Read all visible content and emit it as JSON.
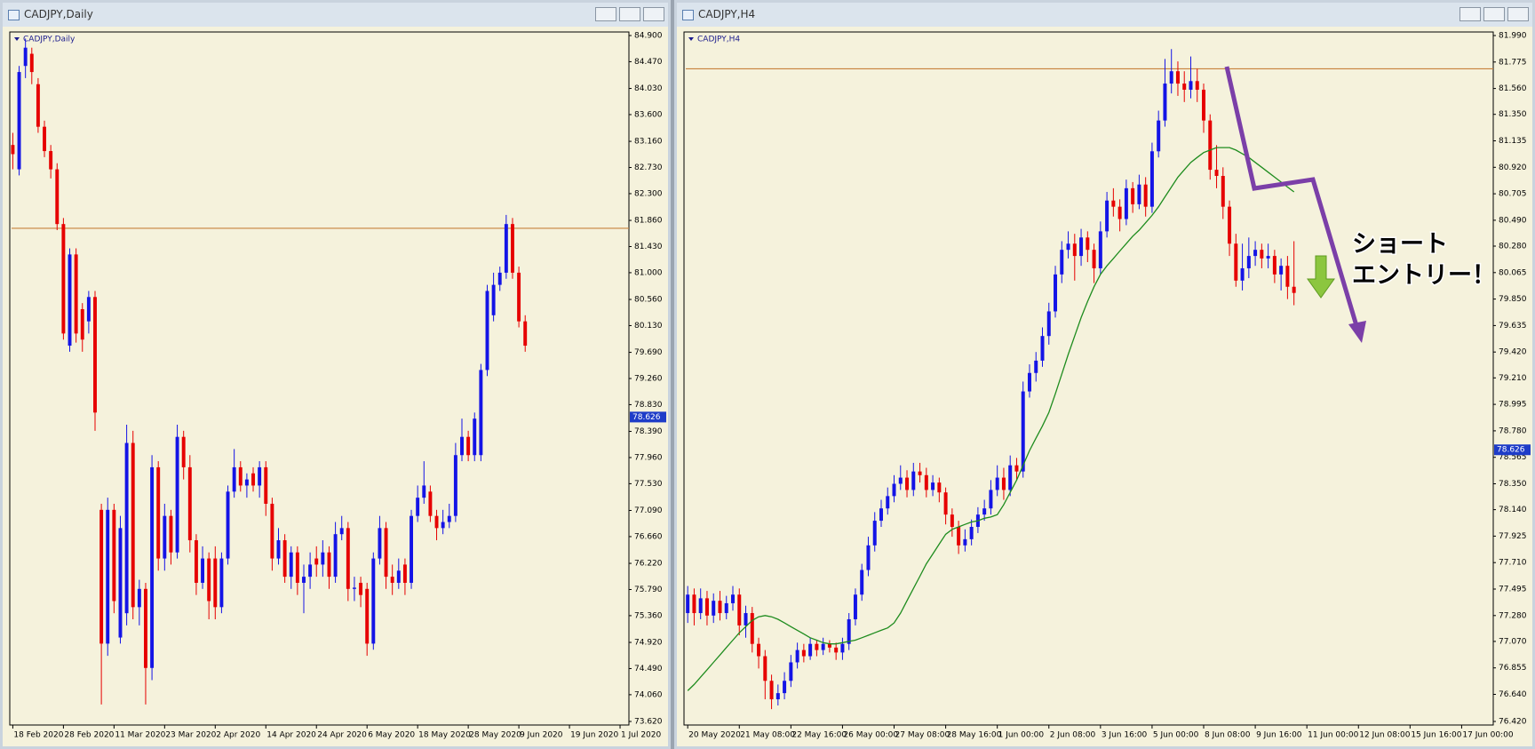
{
  "chart_data": [
    {
      "type": "candlestick",
      "window_title": "CADJPY,Daily",
      "title": "CADJPY,Daily",
      "background": "#f5f2dc",
      "bull_color": "#1414e6",
      "bear_color": "#e60000",
      "hline": 81.73,
      "hline_color": "#c8823c",
      "price_marker": 78.626,
      "marker_color": "#1e3cc8",
      "xlim": [
        -0.2,
        97.4
      ],
      "ylim": [
        73.62,
        84.9
      ],
      "xticks": [
        {
          "value": 0,
          "label": "18 Feb 2020"
        },
        {
          "value": 8,
          "label": "28 Feb 2020"
        },
        {
          "value": 16,
          "label": "11 Mar 2020"
        },
        {
          "value": 24,
          "label": "23 Mar 2020"
        },
        {
          "value": 32,
          "label": "2 Apr 2020"
        },
        {
          "value": 40,
          "label": "14 Apr 2020"
        },
        {
          "value": 48,
          "label": "24 Apr 2020"
        },
        {
          "value": 56,
          "label": "6 May 2020"
        },
        {
          "value": 64,
          "label": "18 May 2020"
        },
        {
          "value": 72,
          "label": "28 May 2020"
        },
        {
          "value": 80,
          "label": "9 Jun 2020"
        },
        {
          "value": 88,
          "label": "19 Jun 2020"
        },
        {
          "value": 96,
          "label": "1 Jul 2020"
        }
      ],
      "yticks": [
        {
          "value": 84.9,
          "label": "84.900"
        },
        {
          "value": 84.47,
          "label": "84.470"
        },
        {
          "value": 84.03,
          "label": "84.030"
        },
        {
          "value": 83.6,
          "label": "83.600"
        },
        {
          "value": 83.16,
          "label": "83.160"
        },
        {
          "value": 82.73,
          "label": "82.730"
        },
        {
          "value": 82.3,
          "label": "82.300"
        },
        {
          "value": 81.86,
          "label": "81.860"
        },
        {
          "value": 81.43,
          "label": "81.430"
        },
        {
          "value": 81.0,
          "label": "81.000"
        },
        {
          "value": 80.56,
          "label": "80.560"
        },
        {
          "value": 80.13,
          "label": "80.130"
        },
        {
          "value": 79.69,
          "label": "79.690"
        },
        {
          "value": 79.26,
          "label": "79.260"
        },
        {
          "value": 78.83,
          "label": "78.830"
        },
        {
          "value": 78.39,
          "label": "78.390"
        },
        {
          "value": 77.96,
          "label": "77.960"
        },
        {
          "value": 77.53,
          "label": "77.530"
        },
        {
          "value": 77.09,
          "label": "77.090"
        },
        {
          "value": 76.66,
          "label": "76.660"
        },
        {
          "value": 76.22,
          "label": "76.220"
        },
        {
          "value": 75.79,
          "label": "75.790"
        },
        {
          "value": 75.36,
          "label": "75.360"
        },
        {
          "value": 74.92,
          "label": "74.920"
        },
        {
          "value": 74.49,
          "label": "74.490"
        },
        {
          "value": 74.06,
          "label": "74.060"
        },
        {
          "value": 73.62,
          "label": "73.620"
        }
      ],
      "open": [
        83.1,
        82.7,
        84.4,
        84.6,
        84.1,
        83.4,
        83.0,
        82.7,
        81.8,
        79.8,
        81.3,
        80.4,
        80.2,
        80.6,
        77.1,
        74.9,
        77.1,
        75.0,
        75.4,
        78.2,
        75.5,
        75.8,
        74.5,
        77.8,
        76.3,
        77.0,
        76.4,
        78.3,
        77.8,
        76.6,
        75.9,
        76.3,
        76.3,
        75.5,
        76.3,
        77.4,
        77.8,
        77.5,
        77.7,
        77.5,
        77.8,
        77.2,
        76.3,
        76.6,
        76.0,
        76.4,
        75.9,
        76.0,
        76.3,
        76.2,
        76.4,
        76.0,
        76.7,
        76.8,
        75.8,
        75.9,
        75.8,
        74.9,
        76.3,
        76.8,
        76.0,
        75.9,
        76.2,
        75.9,
        77.0,
        77.3,
        77.4,
        77.0,
        76.8,
        76.9,
        77.0,
        78.0,
        78.3,
        78.0,
        78.0,
        79.4,
        80.3,
        80.8,
        81.0,
        81.8,
        81.0,
        80.2
      ],
      "high": [
        83.3,
        84.4,
        84.85,
        84.7,
        84.2,
        83.5,
        83.1,
        82.8,
        81.9,
        81.4,
        81.4,
        80.5,
        80.7,
        80.7,
        77.2,
        77.3,
        77.2,
        77.0,
        78.5,
        78.4,
        75.95,
        75.9,
        78.0,
        77.9,
        77.2,
        77.1,
        78.5,
        78.4,
        78.0,
        76.7,
        76.5,
        76.4,
        76.5,
        76.4,
        77.5,
        78.1,
        77.9,
        77.7,
        77.8,
        77.9,
        77.9,
        77.3,
        76.8,
        76.7,
        76.5,
        76.5,
        76.2,
        76.4,
        76.5,
        76.6,
        76.5,
        76.9,
        77.0,
        76.9,
        76.0,
        76.0,
        75.9,
        76.4,
        77.0,
        76.9,
        76.2,
        76.3,
        76.3,
        77.1,
        77.5,
        77.9,
        77.5,
        77.1,
        77.1,
        77.2,
        78.2,
        78.6,
        78.4,
        78.7,
        79.5,
        80.8,
        81.0,
        81.1,
        81.95,
        81.9,
        81.1,
        80.3
      ],
      "low": [
        82.7,
        82.6,
        84.2,
        84.1,
        83.3,
        82.9,
        82.55,
        81.7,
        79.9,
        79.7,
        79.85,
        79.7,
        80.0,
        78.4,
        73.9,
        74.7,
        75.4,
        74.9,
        75.2,
        75.3,
        75.2,
        73.9,
        74.3,
        76.1,
        76.1,
        76.2,
        76.3,
        77.6,
        76.4,
        75.7,
        75.8,
        75.3,
        75.3,
        75.4,
        76.2,
        77.3,
        77.4,
        77.3,
        77.4,
        77.3,
        77.0,
        76.1,
        76.2,
        75.9,
        75.8,
        75.7,
        75.4,
        75.8,
        76.0,
        76.0,
        75.8,
        75.9,
        76.6,
        75.6,
        75.6,
        75.5,
        74.7,
        74.8,
        76.2,
        75.8,
        75.7,
        75.8,
        75.7,
        75.8,
        76.9,
        77.2,
        76.9,
        76.6,
        76.7,
        76.8,
        76.9,
        77.9,
        77.9,
        77.9,
        77.9,
        79.3,
        80.2,
        80.7,
        80.9,
        80.9,
        80.1,
        79.7
      ],
      "close": [
        82.95,
        84.3,
        84.7,
        84.3,
        83.4,
        83.0,
        82.7,
        81.8,
        80.0,
        81.3,
        80.0,
        79.9,
        80.6,
        78.7,
        74.9,
        77.1,
        75.6,
        76.8,
        78.2,
        75.5,
        75.8,
        74.5,
        77.8,
        76.3,
        77.0,
        76.4,
        78.3,
        77.8,
        76.6,
        75.9,
        76.3,
        75.6,
        75.5,
        76.3,
        77.4,
        77.8,
        77.5,
        77.6,
        77.5,
        77.8,
        77.2,
        76.3,
        76.6,
        76.0,
        76.4,
        75.9,
        76.0,
        76.2,
        76.2,
        76.4,
        76.0,
        76.7,
        76.8,
        75.8,
        75.82,
        75.7,
        74.9,
        76.3,
        76.8,
        76.0,
        75.9,
        76.1,
        75.9,
        77.0,
        77.3,
        77.5,
        77.0,
        76.8,
        76.9,
        77.0,
        78.0,
        78.3,
        78.0,
        78.6,
        79.4,
        80.7,
        80.8,
        81.0,
        81.8,
        81.0,
        80.2,
        79.8
      ]
    },
    {
      "type": "candlestick",
      "window_title": "CADJPY,H4",
      "title": "CADJPY,H4",
      "background": "#f5f2dc",
      "bull_color": "#1414e6",
      "bear_color": "#e60000",
      "hline": 81.72,
      "hline_color": "#c8823c",
      "price_marker": 78.626,
      "marker_color": "#1e3cc8",
      "line_color": "#1e8c1e",
      "annotations": [
        "ショート",
        "エントリー！"
      ],
      "annotation_color": "#ea2f6e",
      "xlim": [
        -0.3,
        124.9
      ],
      "ylim": [
        76.42,
        81.99
      ],
      "xticks": [
        {
          "value": 0,
          "label": "20 May 2020"
        },
        {
          "value": 8,
          "label": "21 May 08:00"
        },
        {
          "value": 16,
          "label": "22 May 16:00"
        },
        {
          "value": 24,
          "label": "26 May 00:00"
        },
        {
          "value": 32,
          "label": "27 May 08:00"
        },
        {
          "value": 40,
          "label": "28 May 16:00"
        },
        {
          "value": 48,
          "label": "1 Jun 00:00"
        },
        {
          "value": 56,
          "label": "2 Jun 08:00"
        },
        {
          "value": 64,
          "label": "3 Jun 16:00"
        },
        {
          "value": 72,
          "label": "5 Jun 00:00"
        },
        {
          "value": 80,
          "label": "8 Jun 08:00"
        },
        {
          "value": 88,
          "label": "9 Jun 16:00"
        },
        {
          "value": 96,
          "label": "11 Jun 00:00"
        },
        {
          "value": 104,
          "label": "12 Jun 08:00"
        },
        {
          "value": 112,
          "label": "15 Jun 16:00"
        },
        {
          "value": 120,
          "label": "17 Jun 00:00"
        }
      ],
      "yticks": [
        {
          "value": 81.99,
          "label": "81.990"
        },
        {
          "value": 81.775,
          "label": "81.775"
        },
        {
          "value": 81.56,
          "label": "81.560"
        },
        {
          "value": 81.35,
          "label": "81.350"
        },
        {
          "value": 81.135,
          "label": "81.135"
        },
        {
          "value": 80.92,
          "label": "80.920"
        },
        {
          "value": 80.705,
          "label": "80.705"
        },
        {
          "value": 80.49,
          "label": "80.490"
        },
        {
          "value": 80.28,
          "label": "80.280"
        },
        {
          "value": 80.065,
          "label": "80.065"
        },
        {
          "value": 79.85,
          "label": "79.850"
        },
        {
          "value": 79.635,
          "label": "79.635"
        },
        {
          "value": 79.42,
          "label": "79.420"
        },
        {
          "value": 79.21,
          "label": "79.210"
        },
        {
          "value": 78.995,
          "label": "78.995"
        },
        {
          "value": 78.78,
          "label": "78.780"
        },
        {
          "value": 78.565,
          "label": "78.565"
        },
        {
          "value": 78.35,
          "label": "78.350"
        },
        {
          "value": 78.14,
          "label": "78.140"
        },
        {
          "value": 77.925,
          "label": "77.925"
        },
        {
          "value": 77.71,
          "label": "77.710"
        },
        {
          "value": 77.495,
          "label": "77.495"
        },
        {
          "value": 77.28,
          "label": "77.280"
        },
        {
          "value": 77.07,
          "label": "77.070"
        },
        {
          "value": 76.855,
          "label": "76.855"
        },
        {
          "value": 76.64,
          "label": "76.640"
        },
        {
          "value": 76.42,
          "label": "76.420"
        }
      ],
      "open": [
        77.3,
        77.45,
        77.3,
        77.42,
        77.28,
        77.4,
        77.3,
        77.38,
        77.45,
        77.2,
        77.3,
        77.05,
        76.95,
        76.75,
        76.6,
        76.65,
        76.75,
        76.9,
        77.0,
        76.95,
        77.05,
        77.0,
        77.05,
        77.02,
        76.98,
        77.05,
        77.25,
        77.45,
        77.65,
        77.85,
        78.05,
        78.15,
        78.25,
        78.35,
        78.4,
        78.3,
        78.45,
        78.42,
        78.3,
        78.36,
        78.28,
        78.1,
        78.0,
        77.85,
        77.9,
        78.0,
        78.1,
        78.15,
        78.3,
        78.4,
        78.3,
        78.5,
        78.45,
        79.1,
        79.25,
        79.35,
        79.55,
        79.75,
        80.05,
        80.25,
        80.3,
        80.2,
        80.35,
        80.25,
        80.1,
        80.4,
        80.65,
        80.6,
        80.5,
        80.75,
        80.62,
        80.78,
        80.6,
        81.05,
        81.3,
        81.6,
        81.7,
        81.6,
        81.55,
        81.62,
        81.55,
        81.3,
        80.9,
        80.85,
        80.6,
        80.3,
        80.0,
        80.1,
        80.2,
        80.25,
        80.18,
        80.2,
        80.05,
        80.12,
        79.95
      ],
      "high": [
        77.52,
        77.5,
        77.5,
        77.48,
        77.46,
        77.48,
        77.44,
        77.52,
        77.5,
        77.36,
        77.35,
        77.1,
        77.0,
        76.8,
        76.72,
        76.82,
        76.96,
        77.06,
        77.05,
        77.1,
        77.08,
        77.1,
        77.08,
        77.06,
        77.1,
        77.3,
        77.5,
        77.7,
        77.92,
        78.12,
        78.22,
        78.32,
        78.42,
        78.5,
        78.46,
        78.52,
        78.52,
        78.48,
        78.42,
        78.4,
        78.32,
        78.15,
        78.05,
        77.98,
        78.06,
        78.16,
        78.22,
        78.38,
        78.5,
        78.48,
        78.58,
        78.56,
        79.18,
        79.32,
        79.42,
        79.62,
        79.82,
        80.12,
        80.32,
        80.4,
        80.38,
        80.42,
        80.4,
        80.3,
        80.48,
        80.72,
        80.75,
        80.66,
        80.82,
        80.8,
        80.86,
        80.84,
        81.12,
        81.38,
        81.8,
        81.88,
        81.78,
        81.7,
        81.82,
        81.72,
        81.6,
        81.35,
        81.1,
        80.92,
        80.65,
        80.38,
        80.3,
        80.35,
        80.32,
        80.3,
        80.3,
        80.25,
        80.18,
        80.2,
        80.32
      ],
      "low": [
        77.22,
        77.2,
        77.25,
        77.2,
        77.22,
        77.24,
        77.25,
        77.32,
        77.12,
        77.1,
        76.98,
        76.85,
        76.6,
        76.52,
        76.55,
        76.6,
        76.7,
        76.85,
        76.9,
        76.92,
        76.95,
        76.96,
        76.98,
        76.92,
        76.92,
        77.0,
        77.2,
        77.4,
        77.6,
        77.8,
        78.0,
        78.1,
        78.2,
        78.3,
        78.24,
        78.25,
        78.36,
        78.24,
        78.25,
        78.2,
        78.02,
        77.92,
        77.78,
        77.8,
        77.85,
        77.95,
        78.05,
        78.1,
        78.25,
        78.22,
        78.25,
        78.38,
        78.4,
        79.05,
        79.18,
        79.3,
        79.48,
        79.7,
        79.98,
        80.18,
        80.0,
        80.12,
        80.15,
        79.98,
        80.05,
        80.35,
        80.52,
        80.4,
        80.45,
        80.55,
        80.58,
        80.52,
        80.55,
        81.0,
        81.25,
        81.52,
        81.5,
        81.45,
        81.48,
        81.45,
        81.2,
        80.82,
        80.75,
        80.5,
        80.2,
        79.95,
        79.92,
        80.02,
        80.12,
        80.1,
        80.1,
        79.98,
        79.92,
        79.85,
        79.8
      ],
      "close": [
        77.45,
        77.3,
        77.42,
        77.28,
        77.4,
        77.3,
        77.38,
        77.45,
        77.2,
        77.3,
        77.05,
        76.95,
        76.75,
        76.6,
        76.65,
        76.75,
        76.9,
        77.0,
        76.95,
        77.05,
        77.0,
        77.05,
        77.02,
        76.98,
        77.05,
        77.25,
        77.45,
        77.65,
        77.85,
        78.05,
        78.15,
        78.25,
        78.35,
        78.4,
        78.3,
        78.45,
        78.42,
        78.3,
        78.36,
        78.28,
        78.1,
        78.0,
        77.85,
        77.9,
        78.0,
        78.1,
        78.15,
        78.3,
        78.4,
        78.3,
        78.5,
        78.45,
        79.1,
        79.25,
        79.35,
        79.55,
        79.75,
        80.05,
        80.25,
        80.3,
        80.2,
        80.35,
        80.25,
        80.1,
        80.4,
        80.65,
        80.6,
        80.5,
        80.75,
        80.62,
        80.78,
        80.6,
        81.05,
        81.3,
        81.6,
        81.7,
        81.6,
        81.55,
        81.62,
        81.55,
        81.3,
        80.9,
        80.85,
        80.6,
        80.3,
        80.0,
        80.1,
        80.2,
        80.25,
        80.18,
        80.2,
        80.05,
        80.12,
        79.95,
        79.9
      ],
      "line_values": [
        76.67,
        76.72,
        76.78,
        76.84,
        76.9,
        76.96,
        77.02,
        77.08,
        77.14,
        77.19,
        77.24,
        77.27,
        77.28,
        77.27,
        77.25,
        77.22,
        77.19,
        77.16,
        77.13,
        77.1,
        77.08,
        77.06,
        77.05,
        77.05,
        77.06,
        77.07,
        77.08,
        77.1,
        77.12,
        77.14,
        77.16,
        77.18,
        77.22,
        77.3,
        77.4,
        77.5,
        77.6,
        77.7,
        77.78,
        77.86,
        77.94,
        77.98,
        78.0,
        78.02,
        78.04,
        78.05,
        78.07,
        78.08,
        78.1,
        78.18,
        78.28,
        78.38,
        78.5,
        78.62,
        78.72,
        78.82,
        78.93,
        79.08,
        79.24,
        79.4,
        79.55,
        79.7,
        79.83,
        79.95,
        80.05,
        80.12,
        80.18,
        80.24,
        80.3,
        80.36,
        80.41,
        80.47,
        80.53,
        80.6,
        80.68,
        80.76,
        80.84,
        80.9,
        80.96,
        81.0,
        81.04,
        81.06,
        81.08,
        81.08,
        81.08,
        81.06,
        81.03,
        81.0,
        80.96,
        80.92,
        80.88,
        80.84,
        80.8,
        80.76,
        80.72
      ]
    }
  ]
}
